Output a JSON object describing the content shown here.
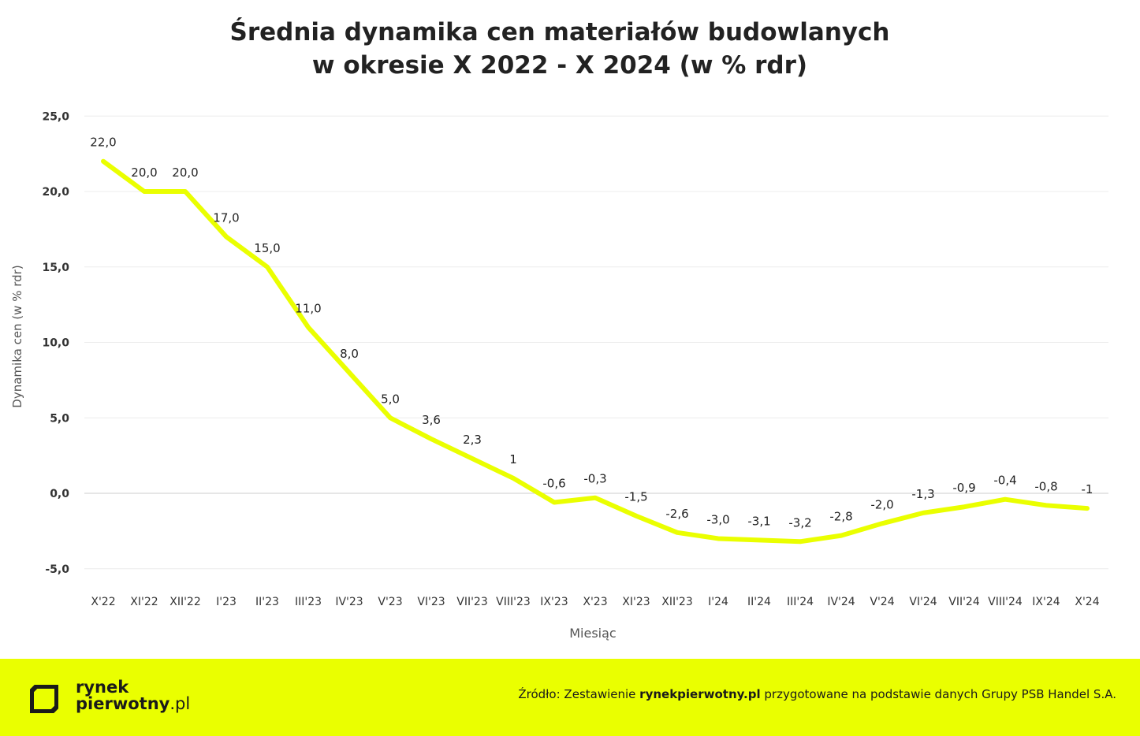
{
  "title_line1": "Średnia dynamika cen materiałów budowlanych",
  "title_line2": "w okresie X 2022 - X 2024 (w % rdr)",
  "chart_data": {
    "type": "line",
    "xlabel": "Miesiąc",
    "ylabel": "Dynamika cen (w % rdr)",
    "ylim": [
      -5,
      25
    ],
    "yticks": [
      "25,0",
      "20,0",
      "15,0",
      "10,0",
      "5,0",
      "0,0",
      "-5,0"
    ],
    "ytick_values": [
      25,
      20,
      15,
      10,
      5,
      0,
      -5
    ],
    "grid": true,
    "line_color": "#eaff00",
    "categories": [
      "X'22",
      "XI'22",
      "XII'22",
      "I'23",
      "II'23",
      "III'23",
      "IV'23",
      "V'23",
      "VI'23",
      "VII'23",
      "VIII'23",
      "IX'23",
      "X'23",
      "XI'23",
      "XII'23",
      "I'24",
      "II'24",
      "III'24",
      "IV'24",
      "V'24",
      "VI'24",
      "VII'24",
      "VIII'24",
      "IX'24",
      "X'24"
    ],
    "values": [
      22.0,
      20.0,
      20.0,
      17.0,
      15.0,
      11.0,
      8.0,
      5.0,
      3.6,
      2.3,
      1,
      -0.6,
      -0.3,
      -1.5,
      -2.6,
      -3.0,
      -3.1,
      -3.2,
      -2.8,
      -2.0,
      -1.3,
      -0.9,
      -0.4,
      -0.8,
      -1
    ],
    "data_labels": [
      "22,0",
      "20,0",
      "20,0",
      "17,0",
      "15,0",
      "11,0",
      "8,0",
      "5,0",
      "3,6",
      "2,3",
      "1",
      "-0,6",
      "-0,3",
      "-1,5",
      "-2,6",
      "-3,0",
      "-3,1",
      "-3,2",
      "-2,8",
      "-2,0",
      "-1,3",
      "-0,9",
      "-0,4",
      "-0,8",
      "-1"
    ]
  },
  "footer": {
    "background": "#eaff00",
    "logo_line1": "rynek",
    "logo_line2": "pierwotny",
    "logo_tld": ".pl",
    "source_prefix": "Źródło: Zestawienie ",
    "source_brand": "rynekpierwotny.pl",
    "source_suffix": " przygotowane na podstawie danych Grupy PSB Handel S.A."
  }
}
